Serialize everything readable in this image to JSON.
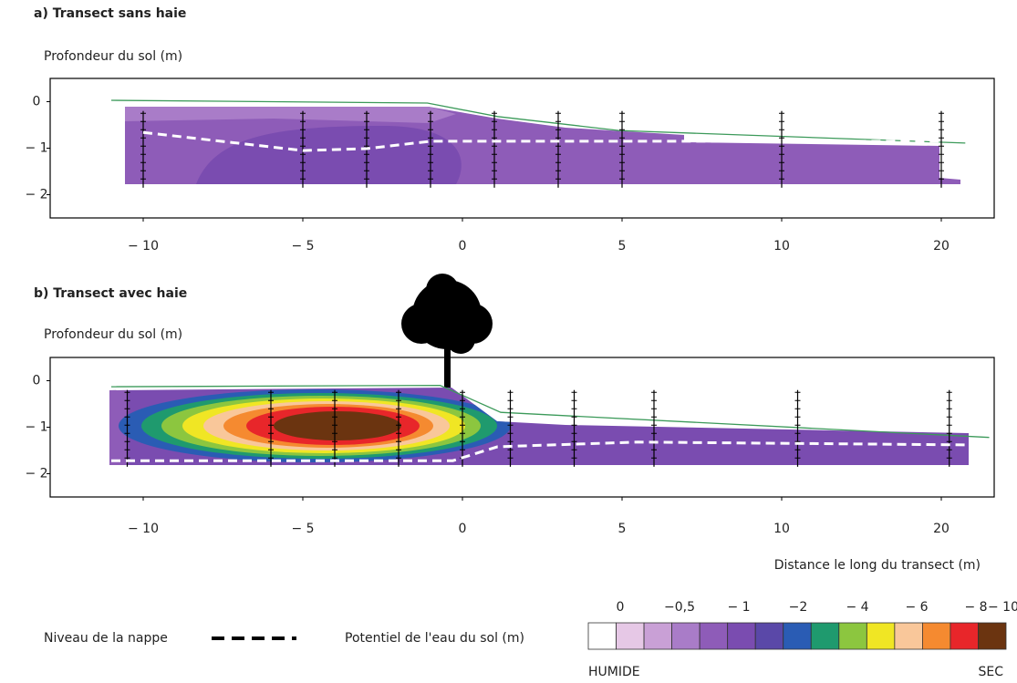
{
  "chart_data": [
    {
      "type": "contour",
      "title": "a) Transect sans haie",
      "y_label": "Profondeur du sol (m)",
      "xticks": [
        {
          "value": -10,
          "label": "− 10"
        },
        {
          "value": -5,
          "label": "− 5"
        },
        0,
        5,
        10,
        20
      ],
      "yticks": [
        0,
        {
          "value": -1,
          "label": "− 1"
        },
        {
          "value": -2,
          "label": "− 2"
        }
      ],
      "ylim": [
        -2.5,
        0.5
      ],
      "surface": {
        "x": [
          -11,
          -1.1,
          1.1,
          4.9,
          21.5
        ],
        "y": [
          0.03,
          -0.03,
          -0.32,
          -0.62,
          -0.89
        ]
      },
      "water_table": {
        "x": [
          -10,
          -5,
          -3,
          -1,
          20
        ],
        "y": [
          -0.66,
          -1.05,
          -1.01,
          -0.85,
          -0.85
        ]
      },
      "probes_x": [
        -10,
        -5,
        -3,
        -1,
        1,
        3,
        5,
        10,
        20
      ]
    },
    {
      "type": "contour",
      "title": "b) Transect avec haie",
      "y_label": "Profondeur du sol (m)",
      "x_label": "Distance le long du transect (m)",
      "xticks": [
        {
          "value": -10,
          "label": "− 10"
        },
        {
          "value": -5,
          "label": "− 5"
        },
        0,
        5,
        10,
        20
      ],
      "yticks": [
        0,
        {
          "value": -1,
          "label": "− 1"
        },
        {
          "value": -2,
          "label": "− 2"
        }
      ],
      "ylim": [
        -2.5,
        0.5
      ],
      "surface": {
        "x": [
          -11,
          -0.7,
          1.2,
          23
        ],
        "y": [
          -0.13,
          -0.1,
          -0.68,
          -1.22
        ]
      },
      "water_table": {
        "x": [
          -11,
          -0.3,
          1.1,
          5.5,
          21.6
        ],
        "y": [
          -1.72,
          -1.72,
          -1.42,
          -1.32,
          -1.38
        ]
      },
      "probes_x": [
        -10.5,
        -6,
        -4,
        -2,
        0,
        1.5,
        3.5,
        6,
        11,
        20.5
      ]
    }
  ],
  "legend": {
    "water_table_label": "Niveau de la nappe",
    "potential_label": "Potentiel de l'eau du sol (m)",
    "levels": [
      0,
      {
        "value": -0.5,
        "label": "−0,5"
      },
      {
        "value": -1,
        "label": "− 1"
      },
      {
        "value": -2,
        "label": "−2"
      },
      {
        "value": -4,
        "label": "− 4"
      },
      {
        "value": -6,
        "label": "− 6"
      },
      {
        "value": -8,
        "label": "− 8"
      },
      {
        "value": -10,
        "label": "− 10"
      }
    ],
    "colors": [
      "#ffffff",
      "#e6c8e6",
      "#c9a0d6",
      "#a97cc8",
      "#8e5cb8",
      "#7a4cb0",
      "#5a48a8",
      "#2a5cb4",
      "#1f9a6e",
      "#8cc63f",
      "#f0e624",
      "#f9c79a",
      "#f58a30",
      "#e8262a",
      "#6b3410"
    ],
    "wet_label": "HUMIDE",
    "dry_label": "SEC"
  }
}
